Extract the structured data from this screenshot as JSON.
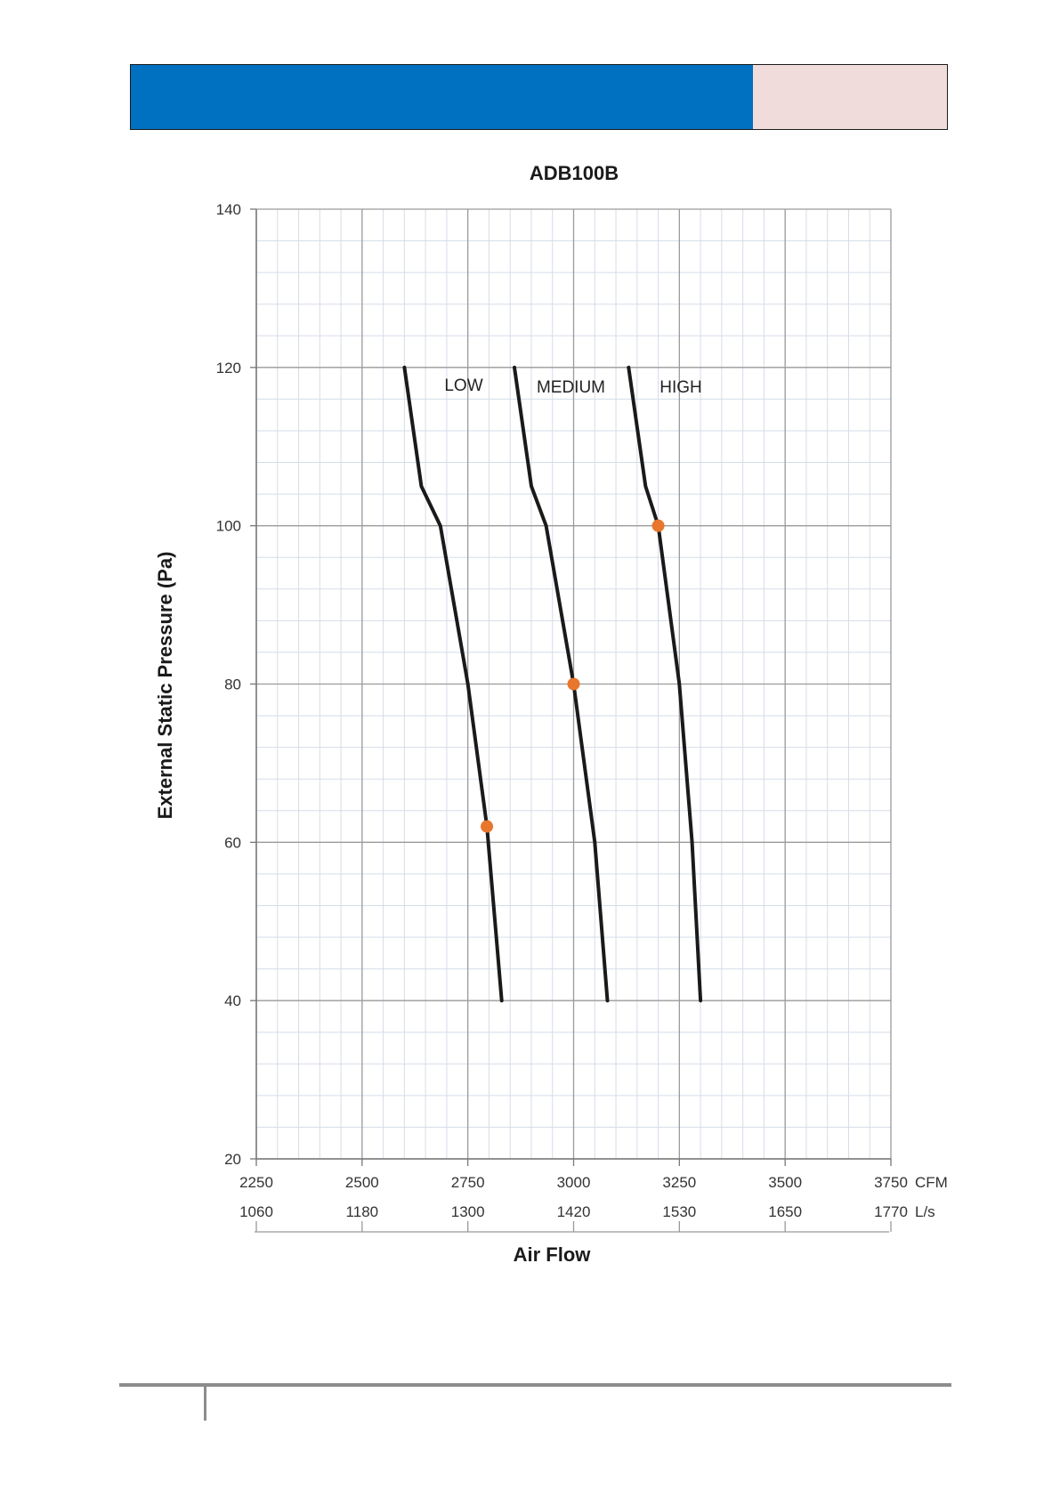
{
  "colors": {
    "header_bar": "#0070C0",
    "header_box": "#F1DCDC",
    "curve": "#1a1a1a",
    "marker": "#E8762C",
    "major_grid": "#9a9a9a",
    "minor_grid": "#d5dde8",
    "footer_rule": "#8c8c8c"
  },
  "chart_data": {
    "type": "line",
    "title": "ADB100B",
    "xlabel": "Air Flow",
    "ylabel": "External Static Pressure (Pa)",
    "xlim": [
      2250,
      3750
    ],
    "ylim": [
      20,
      140
    ],
    "grid": true,
    "x_ticks": [
      "2250",
      "2500",
      "2750",
      "3000",
      "3250",
      "3500",
      "3750"
    ],
    "x_unit": "CFM",
    "x2_ticks": [
      "1060",
      "1180",
      "1300",
      "1420",
      "1530",
      "1650",
      "1770"
    ],
    "x2_unit": "L/s",
    "y_ticks": [
      "20",
      "40",
      "60",
      "80",
      "100",
      "120",
      "140"
    ],
    "series": [
      {
        "name": "LOW",
        "points": [
          [
            2600,
            120
          ],
          [
            2640,
            105
          ],
          [
            2685,
            100
          ],
          [
            2750,
            80
          ],
          [
            2795,
            62
          ],
          [
            2830,
            40
          ]
        ],
        "marker": [
          2795,
          62
        ]
      },
      {
        "name": "MEDIUM",
        "points": [
          [
            2860,
            120
          ],
          [
            2900,
            105
          ],
          [
            2935,
            100
          ],
          [
            3000,
            80
          ],
          [
            3050,
            60
          ],
          [
            3080,
            40
          ]
        ],
        "marker": [
          3000,
          80
        ]
      },
      {
        "name": "HIGH",
        "points": [
          [
            3130,
            120
          ],
          [
            3170,
            105
          ],
          [
            3200,
            100
          ],
          [
            3250,
            80
          ],
          [
            3280,
            60
          ],
          [
            3300,
            40
          ]
        ],
        "marker": [
          3200,
          100
        ]
      }
    ]
  }
}
